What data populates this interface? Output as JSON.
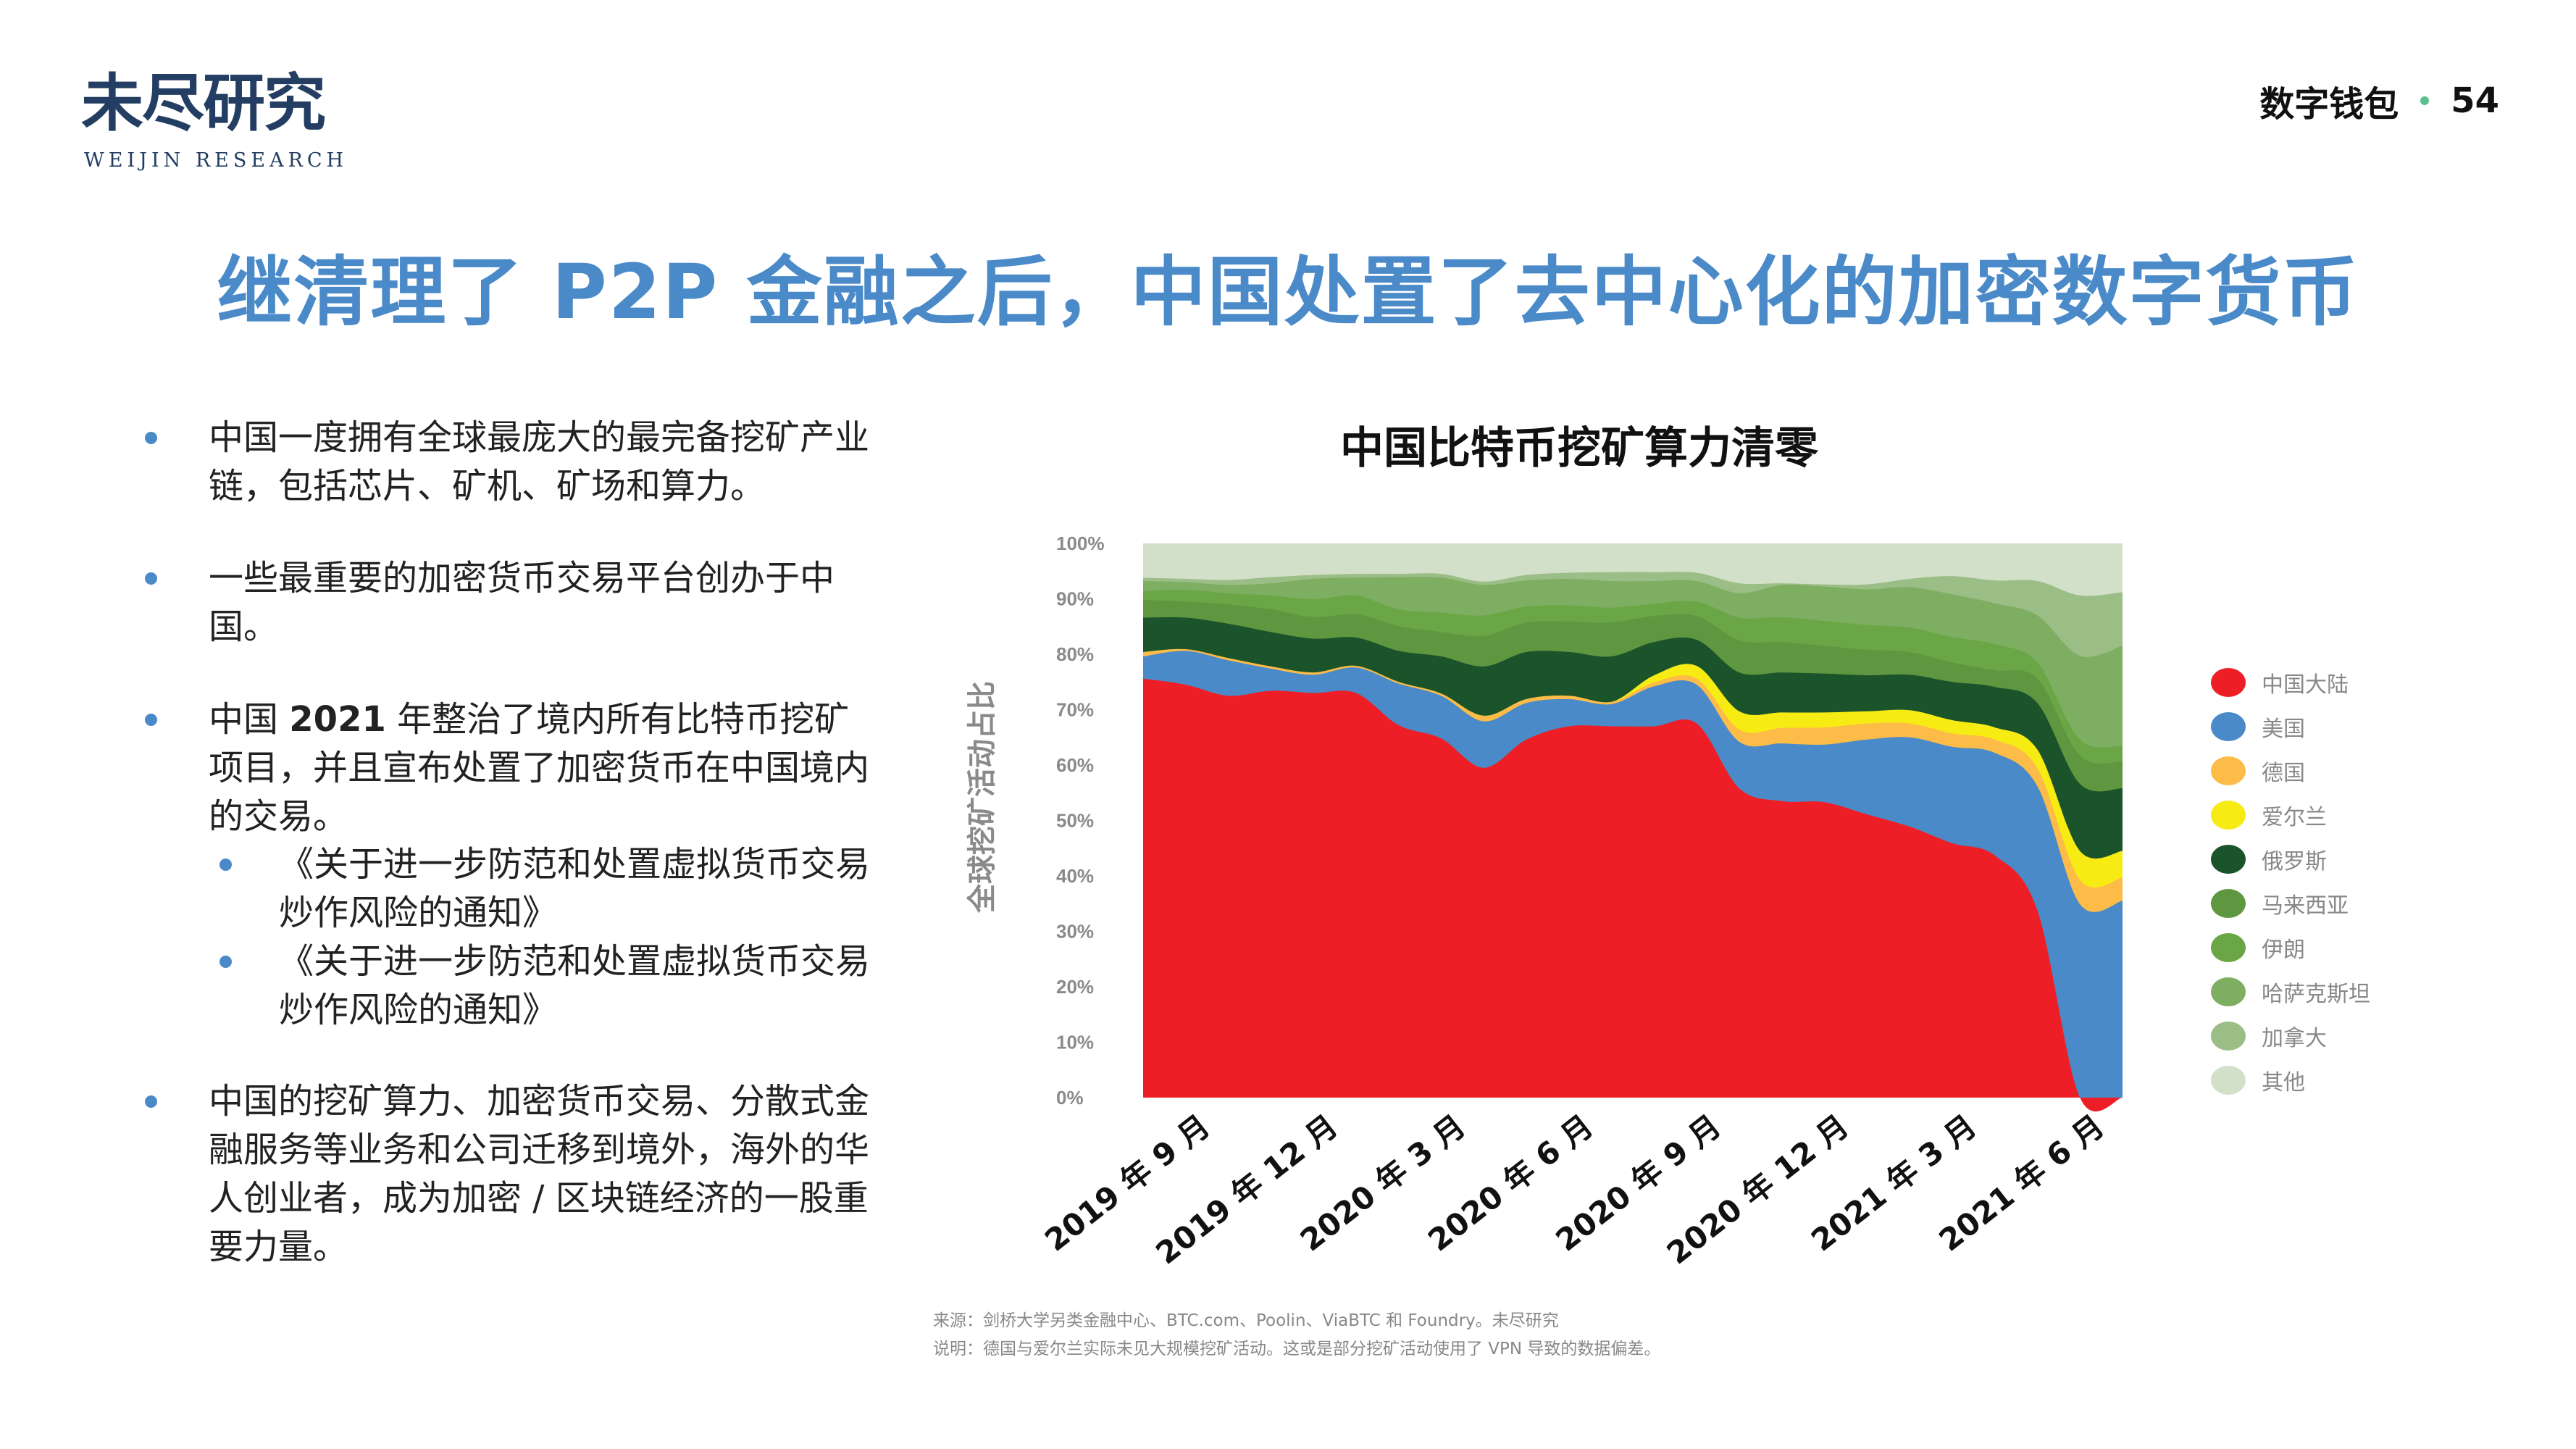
{
  "logo": {
    "cn": "未尽研究",
    "en": "WEIJIN RESEARCH"
  },
  "header": {
    "section": "数字钱包",
    "page": "54"
  },
  "title": "继清理了 P2P 金融之后，中国处置了去中心化的加密数字货币",
  "bullets": [
    {
      "html": "中国一度拥有全球最庞大的最完备挖矿产业链，包括芯片、矿机、矿场和算力。"
    },
    {
      "html": "一些最重要的加密货币交易平台创办于中国。"
    },
    {
      "pre": "中国 ",
      "bold": "2021",
      "post": " 年整治了境内所有比特币挖矿项目，并且宣布处置了加密货币在中国境内的交易。"
    },
    {
      "sub": "《关于进一步防范和处置虚拟货币交易炒作风险的通知》"
    },
    {
      "sub": "《关于进一步防范和处置虚拟货币交易炒作风险的通知》"
    },
    {
      "html": "中国的挖矿算力、加密货币交易、分散式金融服务等业务和公司迁移到境外，海外的华人创业者，成为加密 / 区块链经济的一股重要力量。"
    }
  ],
  "footnotes": {
    "source": "来源：剑桥大学另类金融中心、BTC.com、Poolin、ViaBTC 和 Foundry。未尽研究",
    "note": "说明：德国与爱尔兰实际未见大规模挖矿活动。这或是部分挖矿活动使用了 VPN 导致的数据偏差。"
  },
  "chart_data": {
    "type": "area",
    "stacked": true,
    "title": "中国比特币挖矿算力清零",
    "ylabel": "全球挖矿活动占比",
    "xlabel": "",
    "ylim": [
      0,
      100
    ],
    "yticks": [
      "0%",
      "10%",
      "20%",
      "30%",
      "40%",
      "50%",
      "60%",
      "70%",
      "80%",
      "90%",
      "100%"
    ],
    "x": [
      "2019-09",
      "2019-10",
      "2019-11",
      "2019-12",
      "2020-01",
      "2020-02",
      "2020-03",
      "2020-04",
      "2020-05",
      "2020-06",
      "2020-07",
      "2020-08",
      "2020-09",
      "2020-10",
      "2020-11",
      "2020-12",
      "2021-01",
      "2021-02",
      "2021-03",
      "2021-04",
      "2021-05",
      "2021-06",
      "2021-07",
      "2021-08"
    ],
    "xtick_labels": [
      {
        "x": "2019-09",
        "label": "2019 年 9 月"
      },
      {
        "x": "2019-12",
        "label": "2019 年 12 月"
      },
      {
        "x": "2020-03",
        "label": "2020 年 3 月"
      },
      {
        "x": "2020-06",
        "label": "2020 年 6 月"
      },
      {
        "x": "2020-09",
        "label": "2020 年 9 月"
      },
      {
        "x": "2020-12",
        "label": "2020 年 12 月"
      },
      {
        "x": "2021-03",
        "label": "2021 年 3 月"
      },
      {
        "x": "2021-06",
        "label": "2021 年 6 月"
      }
    ],
    "legend": "right",
    "grid": false,
    "series": [
      {
        "name": "中国大陆",
        "color": "#ee1e26",
        "values": [
          75.6,
          74.5,
          72.5,
          73.4,
          73.0,
          73.0,
          67.2,
          64.8,
          59.5,
          64.6,
          67.0,
          67.0,
          67.0,
          67.5,
          55.8,
          53.5,
          53.3,
          51.1,
          48.9,
          45.9,
          43.7,
          33.8,
          0,
          0
        ]
      },
      {
        "name": "美国",
        "color": "#4a8ac8",
        "values": [
          4.0,
          6.1,
          6.4,
          4.0,
          3.3,
          4.6,
          7.5,
          7.7,
          8.4,
          6.6,
          4.9,
          4.0,
          7.2,
          7.0,
          8.4,
          10.4,
          10.4,
          13.5,
          16.1,
          17.4,
          18.5,
          22.4,
          34.9,
          35.5
        ]
      },
      {
        "name": "德国",
        "color": "#fdbb48",
        "values": [
          0.8,
          0.3,
          0.4,
          0.4,
          0.4,
          0.3,
          0.3,
          0.4,
          1.0,
          0.7,
          0.6,
          0.4,
          0.7,
          1.1,
          2.2,
          2.8,
          3.1,
          2.9,
          2.5,
          2.4,
          2.4,
          3.3,
          4.4,
          4.2
        ]
      },
      {
        "name": "爱尔兰",
        "color": "#f7eb14",
        "values": [
          0,
          0,
          0,
          0,
          0,
          0,
          0,
          0,
          0,
          0,
          0,
          0,
          1.3,
          2.3,
          3.3,
          2.8,
          2.7,
          2.2,
          2.4,
          2.4,
          2.2,
          3.3,
          5.2,
          4.8
        ]
      },
      {
        "name": "俄罗斯",
        "color": "#1b532a",
        "values": [
          6.2,
          5.7,
          6.2,
          6.2,
          6.1,
          5.1,
          5.6,
          6.7,
          8.9,
          8.5,
          7.9,
          8.2,
          6.0,
          4.7,
          7.0,
          7.2,
          7.0,
          6.5,
          6.4,
          6.9,
          7.3,
          8.4,
          12.1,
          11.3
        ]
      },
      {
        "name": "马来西亚",
        "color": "#5f9640",
        "values": [
          3.2,
          2.9,
          3.5,
          4.1,
          3.9,
          4.2,
          4.5,
          4.4,
          5.5,
          5.3,
          5.5,
          6.1,
          4.7,
          4.3,
          5.8,
          5.5,
          5.0,
          4.6,
          4.1,
          3.5,
          3.0,
          4.4,
          5.1,
          4.8
        ]
      },
      {
        "name": "伊朗",
        "color": "#6aa646",
        "values": [
          1.6,
          2.1,
          2.0,
          2.5,
          3.2,
          3.4,
          3.0,
          3.5,
          3.7,
          2.9,
          2.9,
          2.7,
          2.2,
          2.6,
          4.1,
          4.5,
          4.5,
          4.5,
          4.4,
          4.6,
          4.7,
          2.9,
          2.9,
          2.9
        ]
      },
      {
        "name": "哈萨克斯坦",
        "color": "#7eae62",
        "values": [
          1.8,
          1.4,
          1.5,
          2.2,
          3.7,
          3.2,
          5.8,
          6.3,
          5.5,
          4.7,
          4.8,
          4.8,
          4.1,
          3.7,
          4.4,
          5.8,
          6.2,
          6.4,
          7.3,
          7.7,
          7.4,
          8.5,
          15.1,
          18.0
        ]
      },
      {
        "name": "加拿大",
        "color": "#9bbd86",
        "values": [
          0.6,
          0.6,
          0.9,
          1.1,
          0.7,
          0.7,
          0.6,
          0.7,
          0.6,
          1.0,
          1.1,
          1.6,
          1.6,
          1.5,
          1.8,
          0.3,
          0.4,
          0.9,
          1.5,
          3.3,
          4.1,
          6.2,
          10.9,
          9.7
        ]
      },
      {
        "name": "其他",
        "color": "#d3e0c9",
        "values": [
          6.2,
          6.4,
          6.6,
          6.1,
          5.7,
          5.5,
          5.5,
          5.5,
          6.9,
          5.7,
          5.3,
          5.2,
          5.2,
          5.3,
          7.2,
          7.2,
          7.4,
          7.4,
          6.4,
          5.9,
          6.7,
          6.8,
          9.4,
          8.8
        ]
      }
    ]
  }
}
